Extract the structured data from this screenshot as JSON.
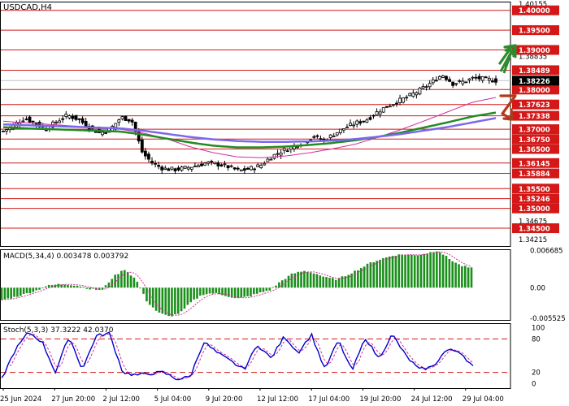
{
  "chart_data": [
    {
      "type": "candlestick",
      "panel": "price",
      "title": "USDCAD,H4",
      "y_axis_ticks": [
        "1.40155",
        "1.38835",
        "1.37335",
        "1.36145",
        "1.34675",
        "1.34215"
      ],
      "ylim": [
        1.3405,
        1.4022
      ],
      "current_price": "1.38226",
      "levels": [
        {
          "value": 1.4,
          "label": "1.40000"
        },
        {
          "value": 1.395,
          "label": "1.39500"
        },
        {
          "value": 1.39,
          "label": "1.39000"
        },
        {
          "value": 1.38489,
          "label": "1.38489"
        },
        {
          "value": 1.38,
          "label": "1.38000"
        },
        {
          "value": 1.37623,
          "label": "1.37623"
        },
        {
          "value": 1.37338,
          "label": "1.37338"
        },
        {
          "value": 1.37,
          "label": "1.37000"
        },
        {
          "value": 1.3675,
          "label": "1.36750"
        },
        {
          "value": 1.365,
          "label": "1.36500"
        },
        {
          "value": 1.36145,
          "label": "1.36145"
        },
        {
          "value": 1.35884,
          "label": "1.35884"
        },
        {
          "value": 1.355,
          "label": "1.35500"
        },
        {
          "value": 1.35246,
          "label": "1.35246"
        },
        {
          "value": 1.35,
          "label": "1.35000"
        },
        {
          "value": 1.345,
          "label": "1.34500"
        }
      ],
      "close_path": [
        1.3695,
        1.371,
        1.3728,
        1.3715,
        1.37,
        1.372,
        1.3735,
        1.3725,
        1.3705,
        1.369,
        1.37,
        1.373,
        1.3722,
        1.364,
        1.3612,
        1.36,
        1.3598,
        1.3602,
        1.3608,
        1.3615,
        1.3612,
        1.3605,
        1.3595,
        1.36,
        1.3608,
        1.363,
        1.3645,
        1.3655,
        1.3668,
        1.3682,
        1.3672,
        1.369,
        1.3705,
        1.3716,
        1.3725,
        1.3745,
        1.376,
        1.3772,
        1.3785,
        1.38,
        1.3818,
        1.3838,
        1.3815,
        1.382,
        1.383,
        1.3826,
        1.3823
      ],
      "moving_averages": [
        {
          "color": "#d0309a",
          "values": [
            1.372,
            1.3716,
            1.3712,
            1.3708,
            1.3704,
            1.37,
            1.369,
            1.3675,
            1.3655,
            1.364,
            1.363,
            1.3628,
            1.3632,
            1.364,
            1.365,
            1.3662,
            1.368,
            1.37,
            1.3722,
            1.3745,
            1.3768,
            1.378
          ]
        },
        {
          "color": "#228b22",
          "values": [
            1.3705,
            1.3702,
            1.37,
            1.3698,
            1.3696,
            1.3694,
            1.3686,
            1.3676,
            1.3666,
            1.3658,
            1.3654,
            1.3654,
            1.3656,
            1.366,
            1.3665,
            1.3672,
            1.3681,
            1.3692,
            1.3705,
            1.3718,
            1.3732,
            1.3742
          ]
        },
        {
          "color": "#7b68ee",
          "values": [
            1.3712,
            1.371,
            1.3708,
            1.3706,
            1.3704,
            1.3702,
            1.3696,
            1.3688,
            1.368,
            1.3674,
            1.367,
            1.3668,
            1.3668,
            1.3669,
            1.3671,
            1.3675,
            1.3681,
            1.3688,
            1.3697,
            1.3706,
            1.3717,
            1.3728
          ]
        }
      ]
    },
    {
      "type": "bar",
      "panel": "macd",
      "title": "MACD(5,34,4) 0.003478 0.003792",
      "y_axis_ticks": [
        "0.006685",
        "0.00",
        "-0.005525"
      ],
      "ylim": [
        -0.0058,
        0.0069
      ],
      "values_path": [
        -0.0022,
        -0.0018,
        -0.0012,
        -0.0006,
        0.0003,
        0.0006,
        0.0006,
        0.0003,
        -0.0003,
        -0.0004,
        0.002,
        0.0033,
        0.0015,
        -0.0025,
        -0.0045,
        -0.0052,
        -0.0045,
        -0.0025,
        -0.0012,
        -0.001,
        -0.0014,
        -0.002,
        -0.0016,
        -0.001,
        -0.0004,
        0.0012,
        0.0025,
        0.003,
        0.0026,
        0.0018,
        0.0015,
        0.0024,
        0.0034,
        0.0045,
        0.0052,
        0.0058,
        0.006,
        0.0058,
        0.0062,
        0.0067,
        0.0052,
        0.004,
        0.0035
      ],
      "signal_color": "#d0309a",
      "bar_color": "#1a8f1a"
    },
    {
      "type": "line",
      "panel": "stochastic",
      "title": "Stoch(5,3,3) 37.3222 42.0370",
      "y_axis_ticks": [
        "100",
        "80",
        "20",
        "0"
      ],
      "ylim": [
        0,
        100
      ],
      "levels": [
        80,
        20
      ],
      "main_path": [
        8,
        60,
        92,
        75,
        20,
        85,
        25,
        85,
        90,
        20,
        15,
        18,
        20,
        8,
        12,
        75,
        55,
        40,
        25,
        70,
        45,
        85,
        55,
        88,
        25,
        78,
        22,
        82,
        45,
        88,
        50,
        25,
        30,
        60,
        58,
        30
      ],
      "signal_color": "#d0309a",
      "main_color": "#0000cc"
    }
  ],
  "x_axis_labels": [
    "25 Jun 2024",
    "27 Jun 20:00",
    "2 Jul 12:00",
    "5 Jul 04:00",
    "9 Jul 20:00",
    "12 Jul 12:00",
    "17 Jul 04:00",
    "19 Jul 20:00",
    "24 Jul 12:00",
    "29 Jul 04:00"
  ],
  "arrows": [
    {
      "direction": "up",
      "color": "#2e8b2e"
    },
    {
      "direction": "down",
      "color": "#b23a1a"
    }
  ]
}
